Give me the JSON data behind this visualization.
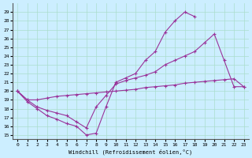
{
  "xlabel": "Windchill (Refroidissement éolien,°C)",
  "bg_color": "#cceeff",
  "line_color": "#993399",
  "xlim": [
    -0.5,
    23.5
  ],
  "ylim": [
    14.5,
    30.0
  ],
  "xticks": [
    0,
    1,
    2,
    3,
    4,
    5,
    6,
    7,
    8,
    9,
    10,
    11,
    12,
    13,
    14,
    15,
    16,
    17,
    18,
    19,
    20,
    21,
    22,
    23
  ],
  "yticks": [
    15,
    16,
    17,
    18,
    19,
    20,
    21,
    22,
    23,
    24,
    25,
    26,
    27,
    28,
    29
  ],
  "line1_x": [
    0,
    1,
    2,
    3,
    4,
    5,
    6,
    7,
    8,
    9,
    10,
    11,
    12,
    13,
    14,
    15,
    16,
    17,
    18
  ],
  "line1_y": [
    20.0,
    18.8,
    18.0,
    17.2,
    16.8,
    16.3,
    16.0,
    15.0,
    15.2,
    18.2,
    21.0,
    21.5,
    22.0,
    23.5,
    24.5,
    26.7,
    28.0,
    29.0,
    28.5
  ],
  "line2_x": [
    0,
    1,
    2,
    3,
    4,
    5,
    6,
    7,
    8,
    9,
    10,
    11,
    12,
    13,
    14,
    15,
    16,
    17,
    18,
    19,
    20,
    21,
    22,
    23
  ],
  "line2_y": [
    20.0,
    19.0,
    18.2,
    17.8,
    17.5,
    17.2,
    16.5,
    15.8,
    18.2,
    19.5,
    20.8,
    21.2,
    21.5,
    21.8,
    22.2,
    23.0,
    23.5,
    24.0,
    24.5,
    25.5,
    26.5,
    23.5,
    20.5,
    20.5
  ],
  "line3_x": [
    0,
    1,
    2,
    3,
    4,
    5,
    6,
    7,
    8,
    9,
    10,
    11,
    12,
    13,
    14,
    15,
    16,
    17,
    18,
    19,
    20,
    21,
    22,
    23
  ],
  "line3_y": [
    20.0,
    19.0,
    19.0,
    19.2,
    19.4,
    19.5,
    19.6,
    19.7,
    19.8,
    19.9,
    20.0,
    20.1,
    20.2,
    20.4,
    20.5,
    20.6,
    20.7,
    20.9,
    21.0,
    21.1,
    21.2,
    21.3,
    21.4,
    20.5
  ]
}
